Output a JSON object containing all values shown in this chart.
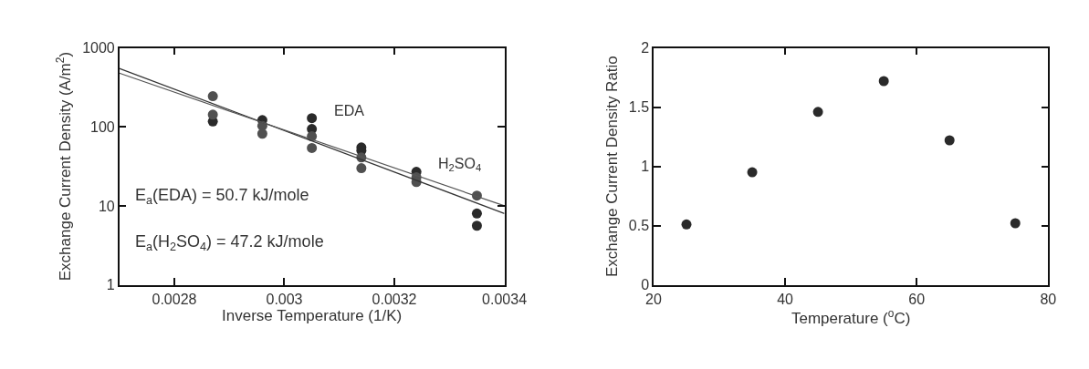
{
  "chart_data": [
    {
      "type": "scatter",
      "xlabel": "Inverse Temperature (1/K)",
      "ylabel": "Exchange Current Density (A/m$^{2}$)",
      "log": "y",
      "xlim": [
        0.0027,
        0.0034
      ],
      "xticks": [
        0.0028,
        0.003,
        0.0032,
        0.0034
      ],
      "ylim": [
        1,
        1000
      ],
      "yticks": [
        1,
        10,
        100,
        1000
      ],
      "marker": "circle",
      "series": [
        {
          "color": "#2a2a2a",
          "x": [
            0.00287,
            0.00296,
            0.00305,
            0.00305,
            0.00314,
            0.00314,
            0.00324,
            0.00335,
            0.00335
          ],
          "values": [
            117,
            122,
            129,
            94,
            55,
            50,
            27,
            8,
            5.6
          ]
        },
        {
          "color": "#505050",
          "x": [
            0.00287,
            0.00287,
            0.00296,
            0.00296,
            0.00305,
            0.00305,
            0.00314,
            0.00314,
            0.00324,
            0.00324,
            0.00335
          ],
          "values": [
            245,
            143,
            103,
            82,
            76,
            54,
            41,
            30,
            23,
            20,
            13.5
          ]
        },
        {
          "type": "line",
          "color": "#333333",
          "line_style": "solid",
          "marker": "none",
          "x": [
            0.0027,
            0.0034
          ],
          "values": [
            550,
            8
          ]
        },
        {
          "type": "line",
          "color": "#555555",
          "line_style": "solid",
          "marker": "none",
          "x": [
            0.0027,
            0.0034
          ],
          "values": [
            480,
            10
          ]
        }
      ],
      "annotations": [
        {
          "text": "EDA",
          "x": 0.00305,
          "y": 129
        },
        {
          "text": "H$_{2}$SO$_{4}$",
          "x": 0.00324,
          "y": 27
        },
        "E$_{a}$(EDA) = 50.7 kJ/mole",
        "E$_{a}$(H$_{2}$SO$_{4}$) = 47.2 kJ/mole"
      ]
    },
    {
      "type": "scatter",
      "xlabel": "Temperature ($^{o}$C)",
      "ylabel": "Exchange Current Density Ratio",
      "xlim": [
        20,
        80
      ],
      "xticks": [
        20,
        40,
        60,
        80
      ],
      "ylim": [
        0,
        2
      ],
      "yticks": [
        0,
        0.5,
        1,
        1.5,
        2
      ],
      "marker": "circle",
      "series": [
        {
          "color": "#2a2a2a",
          "x": [
            25,
            35,
            45,
            55,
            65,
            75
          ],
          "values": [
            0.51,
            0.95,
            1.46,
            1.72,
            1.22,
            0.52
          ]
        }
      ]
    }
  ]
}
